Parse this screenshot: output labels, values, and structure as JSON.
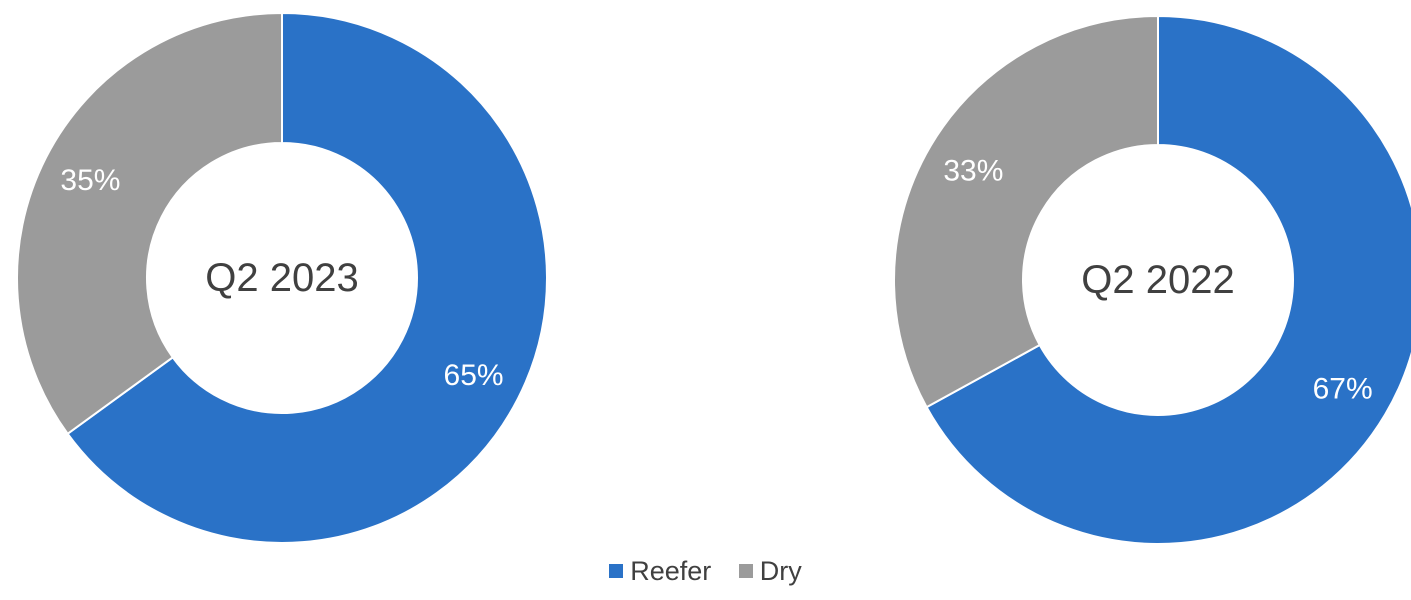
{
  "chart_data": [
    {
      "type": "donut",
      "center_label": "Q2 2023",
      "categories": [
        "Reefer",
        "Dry"
      ],
      "values": [
        65,
        35
      ],
      "labels": [
        "65%",
        "35%"
      ],
      "colors": [
        "#2a72c7",
        "#9b9b9b"
      ]
    },
    {
      "type": "donut",
      "center_label": "Q2 2022",
      "categories": [
        "Reefer",
        "Dry"
      ],
      "values": [
        67,
        33
      ],
      "labels": [
        "67%",
        "33%"
      ],
      "colors": [
        "#2a72c7",
        "#9b9b9b"
      ]
    }
  ],
  "legend": {
    "position": "bottom",
    "items": [
      {
        "label": "Reefer",
        "color": "#2a72c7"
      },
      {
        "label": "Dry",
        "color": "#9b9b9b"
      }
    ]
  }
}
